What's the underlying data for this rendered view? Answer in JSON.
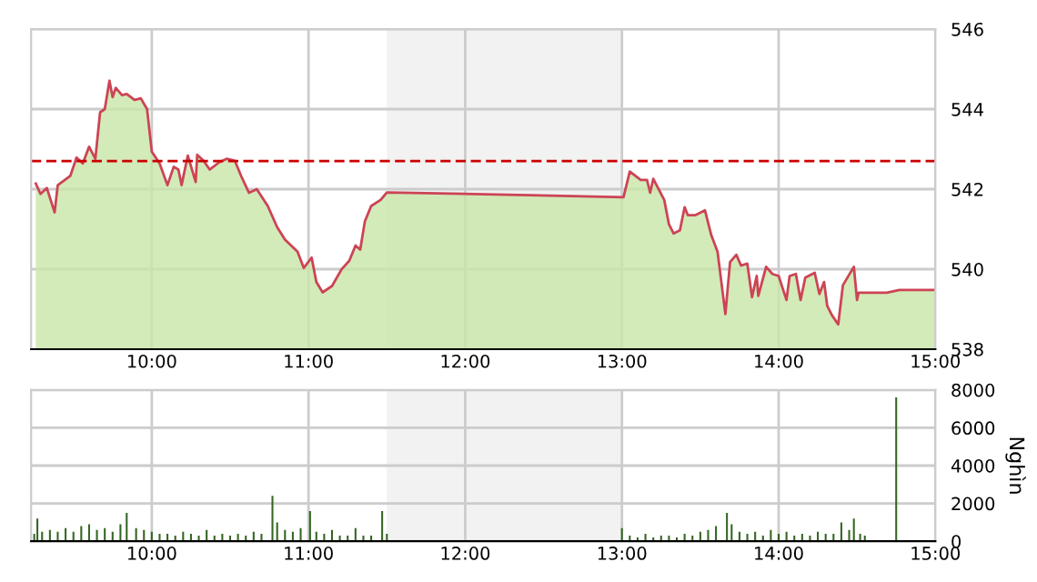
{
  "chart_data": [
    {
      "type": "area",
      "xlim": [
        9.23,
        15.0
      ],
      "ylim": [
        538,
        546
      ],
      "xticks": [
        {
          "value": 10,
          "label": "10:00"
        },
        {
          "value": 11,
          "label": "11:00"
        },
        {
          "value": 12,
          "label": "12:00"
        },
        {
          "value": 13,
          "label": "13:00"
        },
        {
          "value": 14,
          "label": "14:00"
        },
        {
          "value": 15,
          "label": "15:00"
        }
      ],
      "yticks": [
        538,
        540,
        542,
        544,
        546
      ],
      "grid": true,
      "ref_lines": [
        {
          "axis": "y",
          "value": 542.7,
          "color": "#cc0000",
          "line_style": "dashed"
        }
      ],
      "bands": [
        {
          "axis": "x",
          "from": 11.5,
          "to": 13.0,
          "color": "#f2f2f2"
        }
      ],
      "series": [
        {
          "color": "#c8e6a8",
          "type": "area",
          "x": [
            9.26,
            9.29,
            9.33,
            9.38,
            9.4,
            9.48,
            9.52,
            9.56,
            9.6,
            9.64,
            9.67,
            9.7,
            9.73,
            9.75,
            9.77,
            9.81,
            9.84,
            9.89,
            9.93,
            9.97,
            10.0,
            10.05,
            10.1,
            10.14,
            10.17,
            10.19,
            10.23,
            10.28,
            10.29,
            10.33,
            10.37,
            10.43,
            10.48,
            10.53,
            10.57,
            10.62,
            10.67,
            10.74,
            10.8,
            10.85,
            10.93,
            10.97,
            11.02,
            11.05,
            11.09,
            11.15,
            11.21,
            11.26,
            11.3,
            11.33,
            11.36,
            11.4,
            11.46,
            11.5,
            12.41,
            13.01,
            13.05,
            13.12,
            13.16,
            13.18,
            13.2,
            13.23,
            13.27,
            13.3,
            13.33,
            13.37,
            13.4,
            13.42,
            13.47,
            13.53,
            13.57,
            13.61,
            13.66,
            13.69,
            13.73,
            13.76,
            13.8,
            13.83,
            13.86,
            13.87,
            13.92,
            13.96,
            14.0,
            14.05,
            14.07,
            14.11,
            14.14,
            14.17,
            14.23,
            14.26,
            14.29,
            14.31,
            14.34,
            14.38,
            14.41,
            14.48,
            14.5,
            14.51,
            14.69,
            14.77,
            15.0
          ],
          "values": [
            542.14,
            541.88,
            542.03,
            541.42,
            542.1,
            542.33,
            542.79,
            542.64,
            543.06,
            542.76,
            543.92,
            544.0,
            544.71,
            544.3,
            544.53,
            544.35,
            544.38,
            544.23,
            544.27,
            544.0,
            542.94,
            542.64,
            542.1,
            542.56,
            542.49,
            542.1,
            542.84,
            542.18,
            542.86,
            542.71,
            542.49,
            542.67,
            542.76,
            542.71,
            542.33,
            541.91,
            542.0,
            541.58,
            541.05,
            540.74,
            540.44,
            540.03,
            540.29,
            539.68,
            539.42,
            539.58,
            539.99,
            540.21,
            540.59,
            540.49,
            541.2,
            541.58,
            541.73,
            541.92,
            541.85,
            541.8,
            542.44,
            542.23,
            542.23,
            541.91,
            542.26,
            542.03,
            541.73,
            541.12,
            540.89,
            540.97,
            541.55,
            541.35,
            541.35,
            541.47,
            540.85,
            540.44,
            538.88,
            540.18,
            540.36,
            540.09,
            540.14,
            539.3,
            539.83,
            539.33,
            540.06,
            539.88,
            539.83,
            539.23,
            539.83,
            539.88,
            539.23,
            539.79,
            539.91,
            539.38,
            539.68,
            539.08,
            538.85,
            538.62,
            539.6,
            540.06,
            539.23,
            539.41,
            539.41,
            539.48,
            539.48
          ]
        },
        {
          "color": "#cc4455",
          "type": "line",
          "x": [
            9.26,
            9.29,
            9.33,
            9.38,
            9.4,
            9.48,
            9.52,
            9.56,
            9.6,
            9.64,
            9.67,
            9.7,
            9.73,
            9.75,
            9.77,
            9.81,
            9.84,
            9.89,
            9.93,
            9.97,
            10.0,
            10.05,
            10.1,
            10.14,
            10.17,
            10.19,
            10.23,
            10.28,
            10.29,
            10.33,
            10.37,
            10.43,
            10.48,
            10.53,
            10.57,
            10.62,
            10.67,
            10.74,
            10.8,
            10.85,
            10.93,
            10.97,
            11.02,
            11.05,
            11.09,
            11.15,
            11.21,
            11.26,
            11.3,
            11.33,
            11.36,
            11.4,
            11.46,
            11.5,
            12.41,
            13.01,
            13.05,
            13.12,
            13.16,
            13.18,
            13.2,
            13.23,
            13.27,
            13.3,
            13.33,
            13.37,
            13.4,
            13.42,
            13.47,
            13.53,
            13.57,
            13.61,
            13.66,
            13.69,
            13.73,
            13.76,
            13.8,
            13.83,
            13.86,
            13.87,
            13.92,
            13.96,
            14.0,
            14.05,
            14.07,
            14.11,
            14.14,
            14.17,
            14.23,
            14.26,
            14.29,
            14.31,
            14.34,
            14.38,
            14.41,
            14.48,
            14.5,
            14.51,
            14.69,
            14.77,
            15.0
          ],
          "values": [
            542.14,
            541.88,
            542.03,
            541.42,
            542.1,
            542.33,
            542.79,
            542.64,
            543.06,
            542.76,
            543.92,
            544.0,
            544.71,
            544.3,
            544.53,
            544.35,
            544.38,
            544.23,
            544.27,
            544.0,
            542.94,
            542.64,
            542.1,
            542.56,
            542.49,
            542.1,
            542.84,
            542.18,
            542.86,
            542.71,
            542.49,
            542.67,
            542.76,
            542.71,
            542.33,
            541.91,
            542.0,
            541.58,
            541.05,
            540.74,
            540.44,
            540.03,
            540.29,
            539.68,
            539.42,
            539.58,
            539.99,
            540.21,
            540.59,
            540.49,
            541.2,
            541.58,
            541.73,
            541.92,
            541.85,
            541.8,
            542.44,
            542.23,
            542.23,
            541.91,
            542.26,
            542.03,
            541.73,
            541.12,
            540.89,
            540.97,
            541.55,
            541.35,
            541.35,
            541.47,
            540.85,
            540.44,
            538.88,
            540.18,
            540.36,
            540.09,
            540.14,
            539.3,
            539.83,
            539.33,
            540.06,
            539.88,
            539.83,
            539.23,
            539.83,
            539.88,
            539.23,
            539.79,
            539.91,
            539.38,
            539.68,
            539.08,
            538.85,
            538.62,
            539.6,
            540.06,
            539.23,
            539.41,
            539.41,
            539.48,
            539.48
          ]
        }
      ]
    },
    {
      "type": "bar",
      "xlim": [
        9.23,
        15.0
      ],
      "ylim": [
        0,
        8000
      ],
      "ylabel": "Nghìn",
      "xticks": [
        {
          "value": 10,
          "label": "10:00"
        },
        {
          "value": 11,
          "label": "11:00"
        },
        {
          "value": 12,
          "label": "12:00"
        },
        {
          "value": 13,
          "label": "13:00"
        },
        {
          "value": 14,
          "label": "14:00"
        },
        {
          "value": 15,
          "label": "15:00"
        }
      ],
      "yticks": [
        0,
        2000,
        4000,
        6000,
        8000
      ],
      "grid": true,
      "bands": [
        {
          "axis": "x",
          "from": 11.5,
          "to": 13.0,
          "color": "#f2f2f2"
        }
      ],
      "series": [
        {
          "color": "#336622",
          "x": [
            9.25,
            9.27,
            9.3,
            9.35,
            9.4,
            9.45,
            9.5,
            9.55,
            9.6,
            9.65,
            9.7,
            9.75,
            9.8,
            9.84,
            9.9,
            9.95,
            10.0,
            10.05,
            10.1,
            10.15,
            10.2,
            10.25,
            10.3,
            10.35,
            10.4,
            10.45,
            10.5,
            10.55,
            10.6,
            10.65,
            10.7,
            10.77,
            10.8,
            10.85,
            10.9,
            10.95,
            11.01,
            11.05,
            11.1,
            11.15,
            11.2,
            11.25,
            11.3,
            11.35,
            11.4,
            11.47,
            11.5,
            13.0,
            13.05,
            13.1,
            13.15,
            13.2,
            13.25,
            13.3,
            13.35,
            13.4,
            13.45,
            13.5,
            13.55,
            13.6,
            13.67,
            13.7,
            13.75,
            13.8,
            13.85,
            13.9,
            13.95,
            14.0,
            14.05,
            14.1,
            14.15,
            14.2,
            14.25,
            14.3,
            14.35,
            14.4,
            14.45,
            14.48,
            14.52,
            14.55,
            14.75
          ],
          "values": [
            400,
            1200,
            500,
            600,
            500,
            700,
            500,
            800,
            900,
            600,
            700,
            500,
            900,
            1500,
            700,
            600,
            500,
            400,
            400,
            300,
            500,
            400,
            300,
            600,
            300,
            400,
            300,
            400,
            300,
            500,
            400,
            2400,
            1000,
            600,
            500,
            700,
            1600,
            500,
            400,
            600,
            300,
            300,
            700,
            300,
            300,
            1600,
            400,
            700,
            300,
            200,
            400,
            200,
            300,
            300,
            200,
            400,
            300,
            500,
            600,
            800,
            1500,
            900,
            500,
            400,
            500,
            300,
            600,
            400,
            500,
            300,
            400,
            300,
            500,
            400,
            400,
            1000,
            600,
            1200,
            400,
            300,
            7600
          ]
        }
      ]
    }
  ]
}
